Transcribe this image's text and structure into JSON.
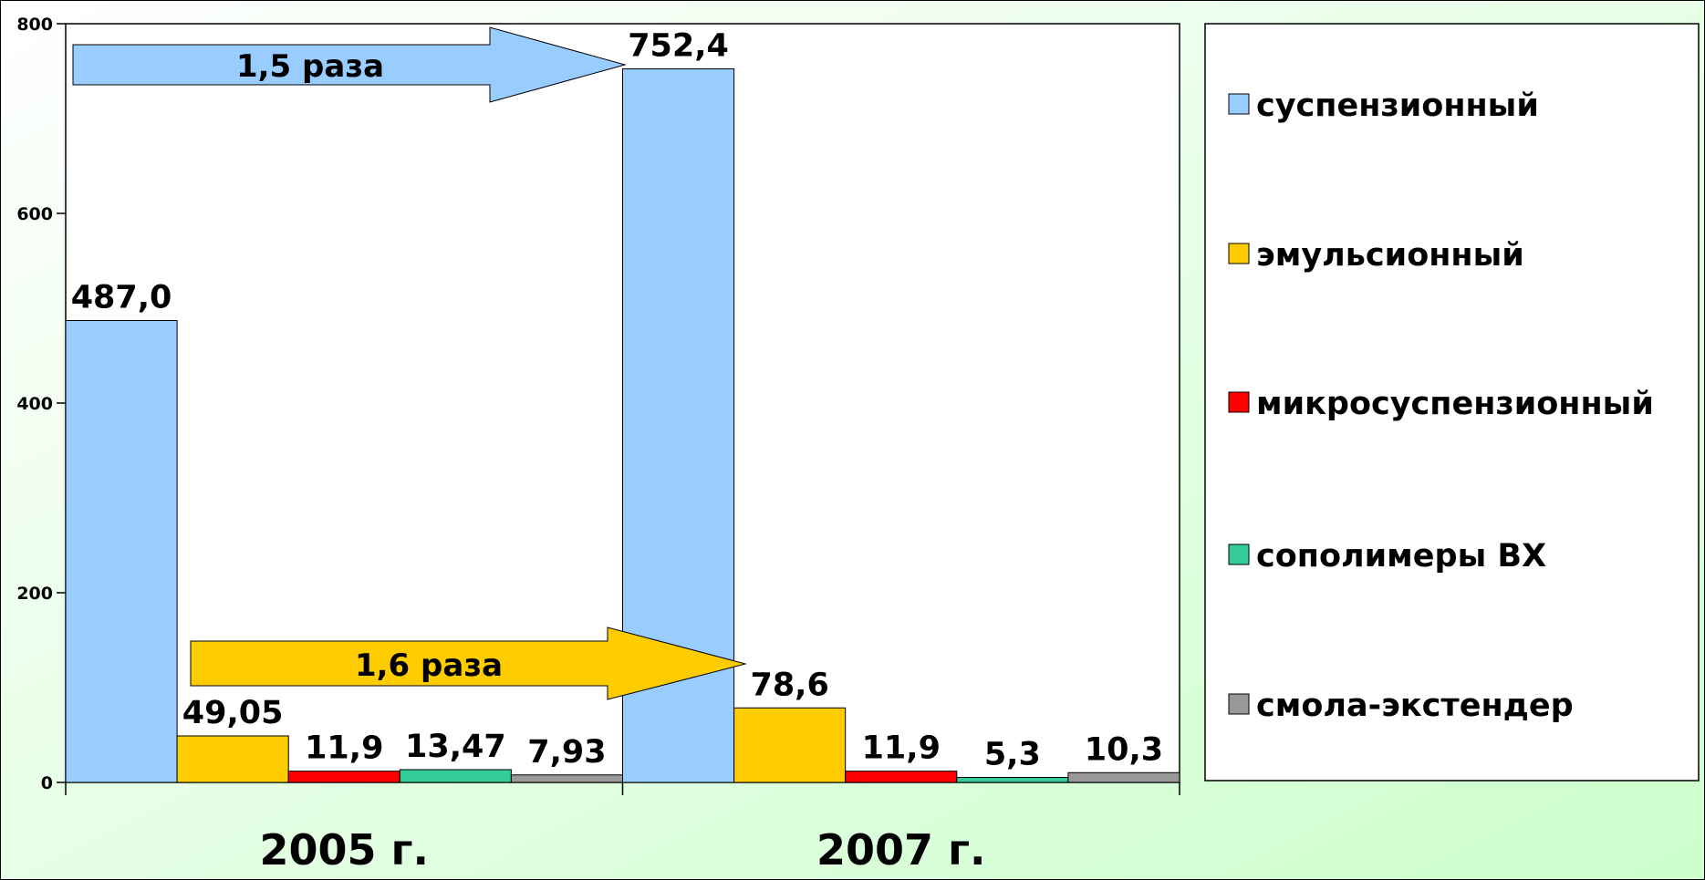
{
  "chart_data": {
    "type": "bar",
    "categories": [
      "2005 г.",
      "2007 г."
    ],
    "series": [
      {
        "name": "суспензионный",
        "color": "#99ccff",
        "values": [
          487.0,
          752.4
        ],
        "value_labels": [
          "487,0",
          "752,4"
        ]
      },
      {
        "name": "эмульсионный",
        "color": "#ffcc00",
        "values": [
          49.05,
          78.6
        ],
        "value_labels": [
          "49,05",
          "78,6"
        ]
      },
      {
        "name": "микросуспензионный",
        "color": "#ff0000",
        "values": [
          11.9,
          11.9
        ],
        "value_labels": [
          "11,9",
          "11,9"
        ]
      },
      {
        "name": "сополимеры ВХ",
        "color": "#33cc99",
        "values": [
          13.47,
          5.3
        ],
        "value_labels": [
          "13,47",
          "5,3"
        ]
      },
      {
        "name": "смола-экстендер",
        "color": "#999999",
        "values": [
          7.93,
          10.3
        ],
        "value_labels": [
          "7,93",
          "10,3"
        ]
      }
    ],
    "annotations": [
      "1,5 раза",
      "1,6 раза"
    ],
    "ylim": [
      0,
      800
    ],
    "yticks": [
      0,
      200,
      400,
      600,
      800
    ],
    "grid": false,
    "legend": "right"
  }
}
